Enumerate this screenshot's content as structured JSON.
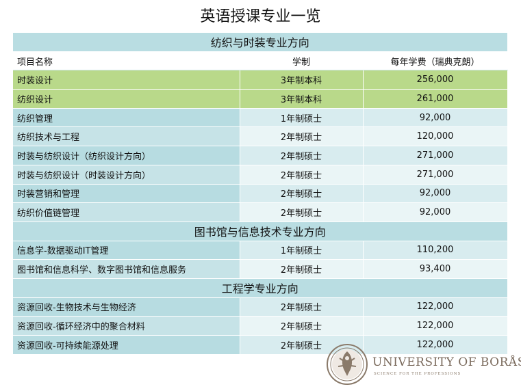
{
  "title": "英语授课专业一览",
  "columns": [
    "项目名称",
    "学制",
    "每年学费（瑞典克朗）"
  ],
  "sections": [
    {
      "heading": "纺织与时装专业方向",
      "rows": [
        {
          "name": "时装设计",
          "duration": "3年制本科",
          "fee": "256,000",
          "highlight": true
        },
        {
          "name": "纺织设计",
          "duration": "3年制本科",
          "fee": "261,000",
          "highlight": true
        },
        {
          "name": "纺织管理",
          "duration": "1年制硕士",
          "fee": "92,000"
        },
        {
          "name": "纺织技术与工程",
          "duration": "2年制硕士",
          "fee": "120,000"
        },
        {
          "name": "时装与纺织设计（纺织设计方向）",
          "duration": "2年制硕士",
          "fee": "271,000"
        },
        {
          "name": "时装与纺织设计（时装设计方向）",
          "duration": "2年制硕士",
          "fee": "271,000"
        },
        {
          "name": "时装营销和管理",
          "duration": "2年制硕士",
          "fee": "92,000"
        },
        {
          "name": "纺织价值链管理",
          "duration": "2年制硕士",
          "fee": "92,000"
        }
      ]
    },
    {
      "heading": "图书馆与信息技术专业方向",
      "rows": [
        {
          "name": "信息学-数据驱动IT管理",
          "duration": "1年制硕士",
          "fee": "110,200"
        },
        {
          "name": "图书馆和信息科学、数字图书馆和信息服务",
          "duration": "2年制硕士",
          "fee": "93,400"
        }
      ]
    },
    {
      "heading": "工程学专业方向",
      "rows": [
        {
          "name": "资源回收-生物技术与生物经济",
          "duration": "2年制硕士",
          "fee": "122,000"
        },
        {
          "name": "资源回收-循环经济中的聚合材料",
          "duration": "2年制硕士",
          "fee": "122,000"
        },
        {
          "name": "资源回收-可持续能源处理",
          "duration": "2年制硕士",
          "fee": "122,000"
        }
      ]
    }
  ],
  "logo": {
    "name": "UNIVERSITY OF BORÅS",
    "tagline": "SCIENCE FOR THE PROFESSIONS",
    "color": "#7a6a5c"
  }
}
